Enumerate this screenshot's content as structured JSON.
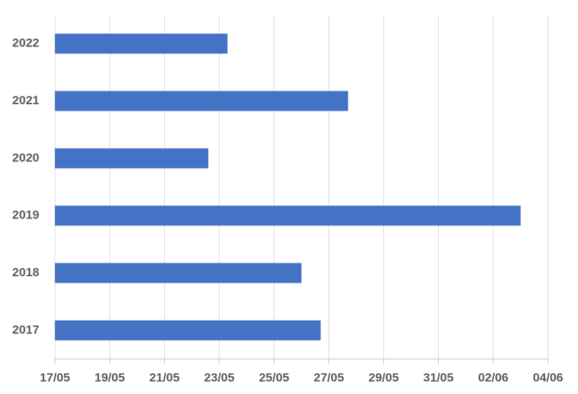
{
  "chart_data": {
    "type": "hbar",
    "categories": [
      "2017",
      "2018",
      "2019",
      "2020",
      "2021",
      "2022"
    ],
    "values": [
      146.7,
      146,
      154,
      142.6,
      147.7,
      143.3
    ],
    "color": "#4472c4",
    "xlim": [
      137,
      155
    ],
    "xticks": [
      {
        "value": 137,
        "label": "17/05"
      },
      {
        "value": 139,
        "label": "19/05"
      },
      {
        "value": 141,
        "label": "21/05"
      },
      {
        "value": 143,
        "label": "23/05"
      },
      {
        "value": 145,
        "label": "25/05"
      },
      {
        "value": 147,
        "label": "27/05"
      },
      {
        "value": 149,
        "label": "29/05"
      },
      {
        "value": 151,
        "label": "31/05"
      },
      {
        "value": 153,
        "label": "02/06"
      },
      {
        "value": 155,
        "label": "04/06"
      }
    ],
    "grid": true
  }
}
